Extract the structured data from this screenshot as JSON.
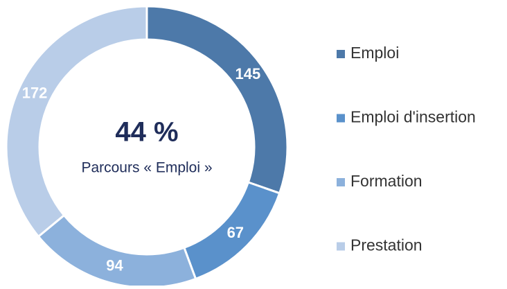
{
  "chart_data": {
    "type": "donut",
    "center_title": "44 %",
    "center_subtitle": "Parcours « Emploi »",
    "categories": [
      "Emploi",
      "Emploi d'insertion",
      "Formation",
      "Prestation"
    ],
    "values": [
      145,
      67,
      94,
      172
    ],
    "colors": [
      "#4d79a9",
      "#5a91cb",
      "#8cb1dc",
      "#b9cde8"
    ],
    "legend": "right"
  }
}
